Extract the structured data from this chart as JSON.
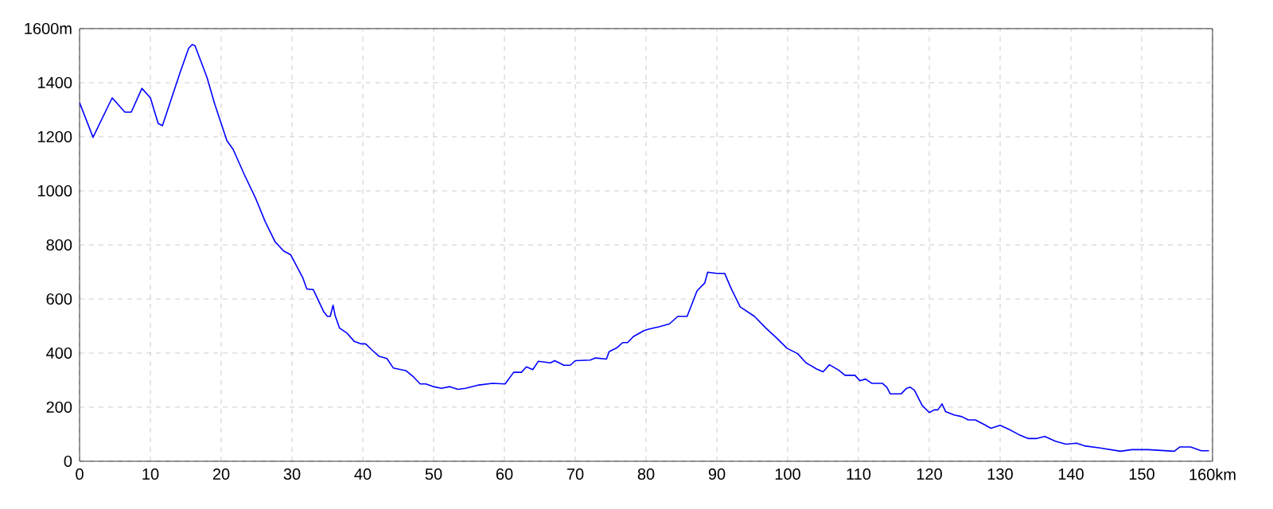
{
  "chart_data": {
    "type": "line",
    "color": "#0000ff",
    "grid": true,
    "x": [
      0,
      1.9,
      4.6,
      6.4,
      7.3,
      8.8,
      10,
      11.1,
      11.7,
      12.7,
      14.2,
      15.4,
      15.9,
      16.3,
      18,
      19.1,
      20.8,
      21.7,
      23.2,
      24.9,
      26.2,
      27.6,
      28.8,
      29.8,
      31.5,
      32.1,
      33,
      34.5,
      35,
      35.4,
      35.8,
      36.1,
      36.7,
      37.8,
      38.8,
      39.8,
      40.4,
      41.2,
      42.3,
      43.4,
      44.3,
      46.1,
      47.2,
      48.1,
      48.9,
      50,
      51.1,
      52.3,
      53.4,
      54.5,
      56.4,
      58.3,
      60.1,
      61.3,
      62.4,
      63.1,
      64,
      64.8,
      66.5,
      67.1,
      68.4,
      69.3,
      70,
      72.1,
      72.9,
      74.4,
      74.8,
      75.9,
      76.7,
      77.4,
      78.2,
      79.7,
      80.4,
      81.9,
      83.3,
      84.5,
      85.8,
      87.2,
      88.3,
      88.7,
      90,
      91.1,
      92,
      93.3,
      95.3,
      96.9,
      98.4,
      99.9,
      101.4,
      102.6,
      104.1,
      105,
      105.9,
      107.2,
      108.1,
      109.5,
      110.2,
      111,
      111.9,
      113.4,
      114,
      114.5,
      116,
      116.8,
      117.3,
      117.9,
      119,
      120,
      120.7,
      121.2,
      121.8,
      122.3,
      123.5,
      124.6,
      125.5,
      126.5,
      127.8,
      128.7,
      130,
      131.4,
      132.7,
      134,
      135.1,
      136.3,
      137.8,
      139.3,
      140.8,
      141.9,
      144.1,
      147,
      148.6,
      150.9,
      154.6,
      155.4,
      156.9,
      158.4,
      159.5
    ],
    "values": [
      1326,
      1198,
      1344,
      1291,
      1291,
      1379,
      1344,
      1249,
      1241,
      1320,
      1438,
      1527,
      1541,
      1537,
      1419,
      1320,
      1186,
      1153,
      1064,
      970,
      887,
      812,
      778,
      764,
      680,
      637,
      635,
      552,
      536,
      536,
      577,
      538,
      493,
      473,
      443,
      434,
      434,
      414,
      388,
      380,
      345,
      335,
      311,
      286,
      286,
      276,
      270,
      276,
      266,
      270,
      282,
      288,
      286,
      329,
      329,
      349,
      339,
      370,
      364,
      372,
      355,
      355,
      372,
      374,
      382,
      378,
      406,
      420,
      439,
      439,
      461,
      483,
      489,
      498,
      508,
      536,
      536,
      630,
      660,
      699,
      695,
      695,
      640,
      571,
      536,
      493,
      457,
      418,
      398,
      364,
      341,
      331,
      357,
      337,
      318,
      318,
      298,
      304,
      288,
      288,
      274,
      249,
      249,
      270,
      274,
      263,
      206,
      180,
      190,
      190,
      212,
      184,
      171,
      165,
      153,
      153,
      135,
      122,
      133,
      116,
      98,
      84,
      84,
      92,
      74,
      63,
      67,
      57,
      49,
      37,
      43,
      43,
      37,
      53,
      53,
      39,
      39
    ],
    "xlim": [
      0,
      160
    ],
    "ylim": [
      0,
      1600
    ],
    "xticks": [
      0,
      10,
      20,
      30,
      40,
      50,
      60,
      70,
      80,
      90,
      100,
      110,
      120,
      130,
      140,
      150,
      {
        "value": 160,
        "label": "160km"
      }
    ],
    "yticks": [
      0,
      200,
      400,
      600,
      800,
      1000,
      1200,
      1400,
      {
        "value": 1600,
        "label": "1600m"
      }
    ]
  }
}
